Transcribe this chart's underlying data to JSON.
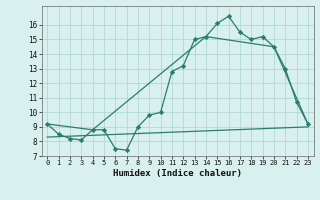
{
  "bg_color": "#d8f0ee",
  "grid_color": "#b0d8d4",
  "line_color": "#2a7d6e",
  "xlabel": "Humidex (Indice chaleur)",
  "xlim": [
    -0.5,
    23.5
  ],
  "ylim": [
    7,
    17
  ],
  "yticks": [
    7,
    8,
    9,
    10,
    11,
    12,
    13,
    14,
    15,
    16
  ],
  "xticks": [
    0,
    1,
    2,
    3,
    4,
    5,
    6,
    7,
    8,
    9,
    10,
    11,
    12,
    13,
    14,
    15,
    16,
    17,
    18,
    19,
    20,
    21,
    22,
    23
  ],
  "line1_x": [
    0,
    1,
    2,
    3,
    4,
    5,
    6,
    7,
    8,
    9,
    10,
    11,
    12,
    13,
    14,
    15,
    16,
    17,
    18,
    19,
    20,
    21,
    22,
    23
  ],
  "line1_y": [
    9.2,
    8.5,
    8.2,
    8.1,
    8.8,
    8.8,
    7.5,
    7.4,
    9.0,
    9.8,
    10.0,
    12.8,
    13.2,
    15.0,
    15.2,
    16.1,
    16.6,
    15.5,
    15.0,
    15.2,
    14.5,
    13.0,
    10.7,
    9.2
  ],
  "line2_x": [
    0,
    4,
    14,
    20,
    23
  ],
  "line2_y": [
    9.2,
    8.8,
    15.2,
    14.5,
    9.2
  ],
  "line3_x": [
    0,
    23
  ],
  "line3_y": [
    8.3,
    9.0
  ]
}
